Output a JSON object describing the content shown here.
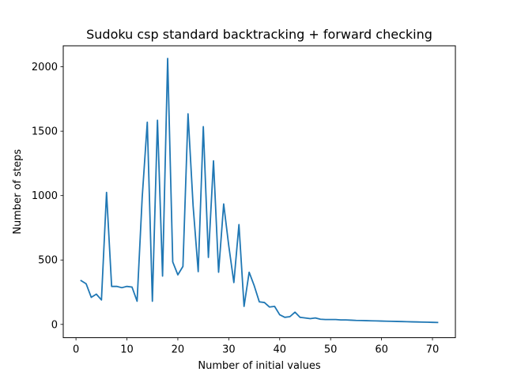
{
  "chart_data": {
    "type": "line",
    "title": "Sudoku csp standard backtracking + forward checking",
    "xlabel": "Number of initial values",
    "ylabel": "Number of steps",
    "xlim": [
      -2.5,
      74.5
    ],
    "ylim": [
      -103,
      2163
    ],
    "xticks": [
      0,
      10,
      20,
      30,
      40,
      50,
      60,
      70
    ],
    "yticks": [
      0,
      500,
      1000,
      1500,
      2000
    ],
    "grid": false,
    "legend": "none",
    "series": [
      {
        "color": "#1f77b4",
        "x": [
          1,
          2,
          3,
          4,
          5,
          6,
          7,
          8,
          9,
          10,
          11,
          12,
          13,
          14,
          15,
          16,
          17,
          18,
          19,
          20,
          21,
          22,
          23,
          24,
          25,
          26,
          27,
          28,
          29,
          30,
          31,
          32,
          33,
          34,
          35,
          36,
          37,
          38,
          39,
          40,
          41,
          42,
          43,
          44,
          45,
          46,
          47,
          48,
          49,
          50,
          51,
          52,
          53,
          54,
          55,
          56,
          57,
          58,
          59,
          60,
          61,
          62,
          63,
          64,
          65,
          66,
          67,
          68,
          69,
          70,
          71
        ],
        "y": [
          340,
          315,
          210,
          235,
          190,
          1025,
          295,
          295,
          285,
          295,
          290,
          180,
          985,
          1570,
          180,
          1585,
          375,
          2065,
          485,
          385,
          450,
          1635,
          920,
          410,
          1535,
          520,
          1270,
          405,
          935,
          610,
          325,
          775,
          140,
          405,
          300,
          175,
          170,
          135,
          140,
          75,
          55,
          60,
          95,
          55,
          50,
          45,
          50,
          40,
          38,
          38,
          38,
          35,
          35,
          33,
          31,
          30,
          29,
          28,
          27,
          26,
          25,
          24,
          23,
          22,
          21,
          20,
          19,
          18,
          17,
          16,
          15
        ]
      }
    ]
  }
}
